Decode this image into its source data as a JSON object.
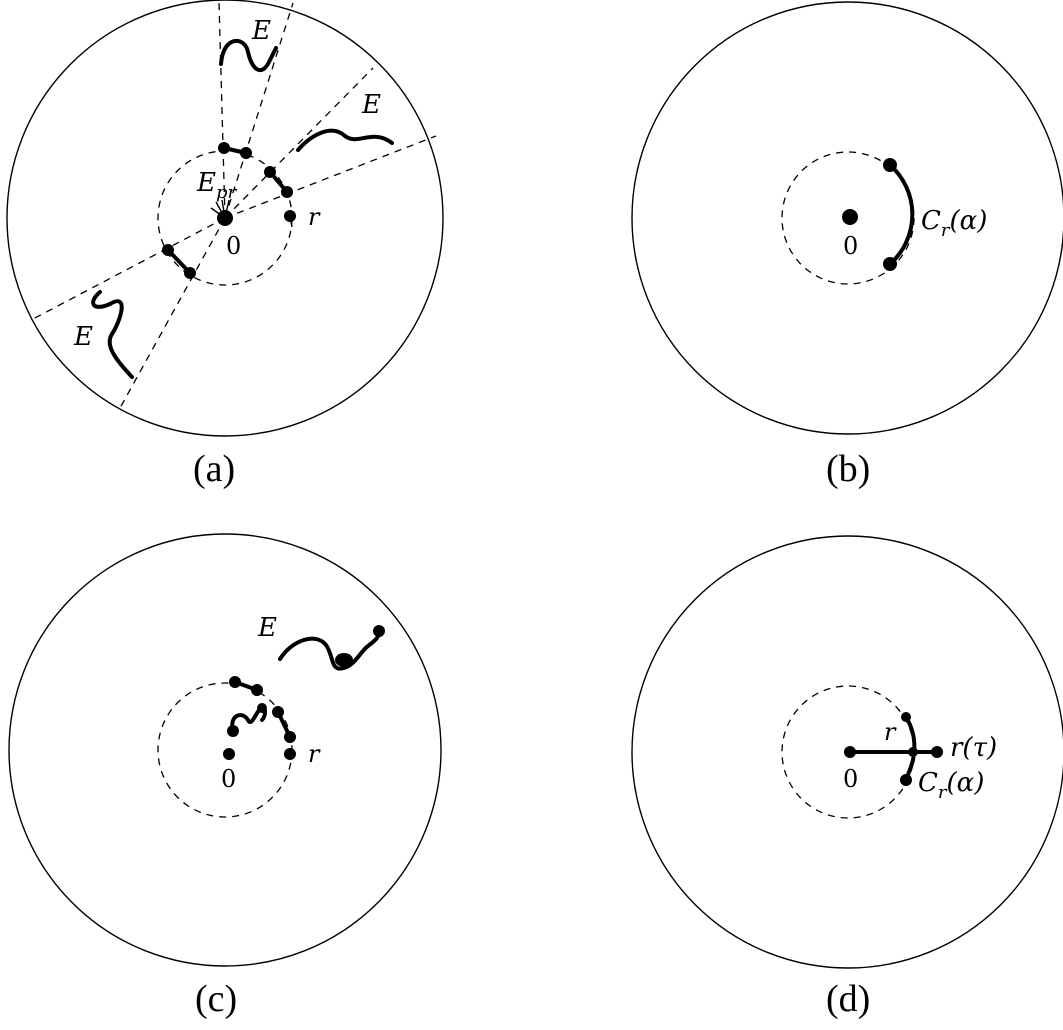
{
  "panels": {
    "a": {
      "caption": "(a)",
      "origin": "0",
      "r": "r",
      "e_pr": "E",
      "e_pr_sub": "pr",
      "e": "E"
    },
    "b": {
      "caption": "(b)",
      "origin": "0",
      "arc_label_main": "C",
      "arc_label_sub": "r",
      "arc_label_arg": "(α)"
    },
    "c": {
      "caption": "(c)",
      "origin": "0",
      "r": "r",
      "e": "E"
    },
    "d": {
      "caption": "(d)",
      "origin": "0",
      "r": "r",
      "r_tau": "r(τ)",
      "arc_label_main": "C",
      "arc_label_sub": "r",
      "arc_label_arg": "(α)"
    }
  }
}
